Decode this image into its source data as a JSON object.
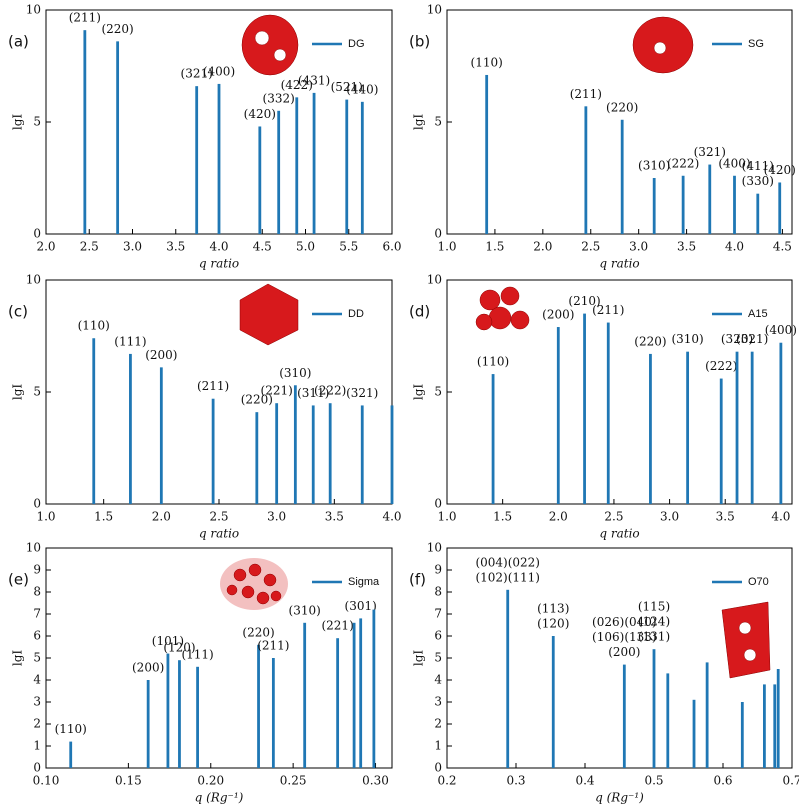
{
  "chart_data": [
    {
      "type": "bar",
      "panel_label": "(a)",
      "xlabel": "q ratio",
      "ylabel": "lgI",
      "xlim": [
        2.0,
        6.0
      ],
      "ylim": [
        0,
        10
      ],
      "xticks": [
        {
          "value": 2,
          "label": "2.0"
        },
        2.5,
        {
          "value": 3,
          "label": "3.0"
        },
        3.5,
        {
          "value": 4,
          "label": "4.0"
        },
        4.5,
        {
          "value": 5,
          "label": "5.0"
        },
        5.5,
        {
          "value": 6,
          "label": "6.0"
        }
      ],
      "yticks": [
        0,
        5,
        10
      ],
      "legend_loc": "upper right",
      "series": [
        {
          "name": "DG",
          "color": "#1f77b4",
          "x": [
            2.449,
            2.828,
            3.742,
            4.0,
            4.472,
            4.69,
            4.899,
            5.099,
            5.477,
            5.657
          ],
          "values": [
            9.1,
            8.6,
            6.6,
            6.7,
            4.8,
            5.5,
            6.1,
            6.3,
            6.0,
            5.9
          ],
          "peak_labels": [
            "(211)",
            "(220)",
            "(321)",
            "(400)",
            "(420)",
            "(332)",
            "(422)",
            "(431)",
            "(521)",
            "(440)"
          ]
        }
      ]
    },
    {
      "type": "bar",
      "panel_label": "(b)",
      "xlabel": "q ratio",
      "ylabel": "lgI",
      "xlim": [
        1.0,
        4.6
      ],
      "ylim": [
        0,
        10
      ],
      "xticks": [
        {
          "value": 1,
          "label": "1.0"
        },
        1.5,
        {
          "value": 2,
          "label": "2.0"
        },
        2.5,
        {
          "value": 3,
          "label": "3.0"
        },
        3.5,
        {
          "value": 4,
          "label": "4.0"
        },
        4.5
      ],
      "yticks": [
        0,
        5,
        10
      ],
      "legend_loc": "upper right",
      "series": [
        {
          "name": "SG",
          "color": "#1f77b4",
          "x": [
            1.414,
            2.449,
            2.828,
            3.162,
            3.464,
            3.742,
            4.0,
            4.243,
            4.472
          ],
          "values": [
            7.1,
            5.7,
            5.1,
            2.5,
            2.6,
            3.1,
            2.6,
            1.8,
            2.3
          ],
          "peak_labels": [
            "(110)",
            "(211)",
            "(220)",
            "(310)",
            "(222)",
            "(321)",
            "(400)",
            [
              "(411)",
              "(330)"
            ],
            "(420)"
          ]
        }
      ]
    },
    {
      "type": "bar",
      "panel_label": "(c)",
      "xlabel": "q ratio",
      "ylabel": "lgI",
      "xlim": [
        1.0,
        4.0
      ],
      "ylim": [
        0,
        10
      ],
      "xticks": [
        {
          "value": 1,
          "label": "1.0"
        },
        1.5,
        {
          "value": 2,
          "label": "2.0"
        },
        2.5,
        {
          "value": 3,
          "label": "3.0"
        },
        3.5,
        {
          "value": 4,
          "label": "4.0"
        }
      ],
      "yticks": [
        0,
        5,
        10
      ],
      "legend_loc": "upper right",
      "series": [
        {
          "name": "DD",
          "color": "#1f77b4",
          "x": [
            1.414,
            1.732,
            2.0,
            2.449,
            2.828,
            3.0,
            3.162,
            3.317,
            3.464,
            3.742,
            4.0
          ],
          "values": [
            7.4,
            6.7,
            6.1,
            4.7,
            4.1,
            4.5,
            5.3,
            4.4,
            4.5,
            4.4,
            4.4
          ],
          "peak_labels": [
            "(110)",
            "(111)",
            "(200)",
            "(211)",
            "(220)",
            "(221)",
            "(310)",
            "(311)",
            "(222)",
            "(321)",
            null
          ]
        }
      ]
    },
    {
      "type": "bar",
      "panel_label": "(d)",
      "xlabel": "q ratio",
      "ylabel": "lgI",
      "xlim": [
        1.0,
        4.1
      ],
      "ylim": [
        0,
        10
      ],
      "xticks": [
        {
          "value": 1,
          "label": "1.0"
        },
        1.5,
        {
          "value": 2,
          "label": "2.0"
        },
        2.5,
        {
          "value": 3,
          "label": "3.0"
        },
        3.5,
        {
          "value": 4,
          "label": "4.0"
        }
      ],
      "yticks": [
        0,
        5,
        10
      ],
      "legend_loc": "upper right",
      "series": [
        {
          "name": "A15",
          "color": "#1f77b4",
          "x": [
            1.414,
            2.0,
            2.236,
            2.449,
            2.828,
            3.162,
            3.464,
            3.606,
            3.742,
            4.0
          ],
          "values": [
            5.8,
            7.9,
            8.5,
            8.1,
            6.7,
            6.8,
            5.6,
            6.8,
            6.8,
            7.2
          ],
          "peak_labels": [
            "(110)",
            "(200)",
            "(210)",
            "(211)",
            "(220)",
            "(310)",
            "(222)",
            "(320)",
            "(321)",
            "(400)"
          ]
        }
      ]
    },
    {
      "type": "bar",
      "panel_label": "(e)",
      "xlabel": "q (Rg⁻¹)",
      "ylabel": "lgI",
      "xlim": [
        0.1,
        0.31
      ],
      "ylim": [
        0,
        10
      ],
      "xticks": [
        {
          "value": 0.1,
          "label": "0.10"
        },
        0.15,
        {
          "value": 0.2,
          "label": "0.20"
        },
        0.25,
        {
          "value": 0.3,
          "label": "0.30"
        }
      ],
      "yticks": [
        0,
        1,
        2,
        3,
        4,
        5,
        6,
        7,
        8,
        9,
        10
      ],
      "legend_loc": "upper right",
      "series": [
        {
          "name": "Sigma",
          "color": "#1f77b4",
          "x": [
            0.115,
            0.162,
            0.174,
            0.181,
            0.192,
            0.229,
            0.238,
            0.257,
            0.277,
            0.287,
            0.291,
            0.299
          ],
          "values": [
            1.2,
            4.0,
            5.2,
            4.9,
            4.6,
            5.6,
            5.0,
            6.6,
            5.9,
            6.6,
            6.8,
            7.2
          ],
          "peak_labels": [
            "(110)",
            "(200)",
            "(101)",
            "(120)",
            "(111)",
            "(220)",
            "(211)",
            "(310)",
            "(221)",
            null,
            "(301)",
            null
          ]
        }
      ]
    },
    {
      "type": "bar",
      "panel_label": "(f)",
      "xlabel": "q (Rg⁻¹)",
      "ylabel": "lgI",
      "xlim": [
        0.2,
        0.7
      ],
      "ylim": [
        0,
        10
      ],
      "xticks": [
        0.2,
        0.3,
        0.4,
        0.5,
        0.6,
        0.7
      ],
      "yticks": [
        0,
        1,
        2,
        3,
        4,
        5,
        6,
        7,
        8,
        9,
        10
      ],
      "legend_loc": "upper right",
      "series": [
        {
          "name": "O70",
          "color": "#1f77b4",
          "x": [
            0.288,
            0.354,
            0.457,
            0.5,
            0.52,
            0.558,
            0.577,
            0.628,
            0.66,
            0.675,
            0.68
          ],
          "values": [
            8.1,
            6.0,
            4.7,
            5.4,
            4.3,
            3.1,
            4.8,
            3.0,
            3.8,
            3.8,
            4.5
          ],
          "peak_labels": [
            [
              "(004)(022)",
              "(102)(111)"
            ],
            [
              "(113)",
              "(120)"
            ],
            [
              "(026)(040)",
              "(106)(133)",
              "(200)"
            ],
            [
              "(115)",
              "(124)",
              "(131)"
            ],
            null,
            null,
            null,
            null,
            null,
            null,
            null
          ]
        }
      ]
    }
  ]
}
